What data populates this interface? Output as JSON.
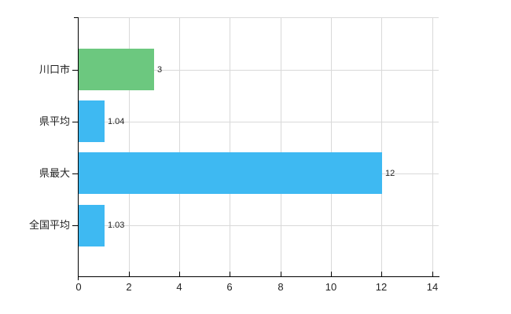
{
  "chart_data": {
    "type": "bar",
    "orientation": "horizontal",
    "title": "",
    "xlabel": "",
    "ylabel": "",
    "categories": [
      "川口市",
      "県平均",
      "県最大",
      "全国平均"
    ],
    "values": [
      3,
      1.04,
      12,
      1.03
    ],
    "value_labels": [
      "3",
      "1.04",
      "12",
      "1.03"
    ],
    "bar_colors": [
      "#6cc87f",
      "#3eb9f2",
      "#3eb9f2",
      "#3eb9f2"
    ],
    "x_tick_labels": [
      "0",
      "2",
      "4",
      "6",
      "8",
      "10",
      "12",
      "14"
    ],
    "x_tick_values": [
      0,
      2,
      4,
      6,
      8,
      10,
      12,
      14
    ],
    "xlim": [
      0,
      14.3
    ],
    "grid": true,
    "legend_position": "none",
    "colors": {
      "bar_green": "#6cc87f",
      "bar_blue": "#3eb9f2",
      "gridline": "#d9d9d9",
      "axis": "#000000",
      "text": "#222222",
      "background": "#ffffff"
    }
  }
}
